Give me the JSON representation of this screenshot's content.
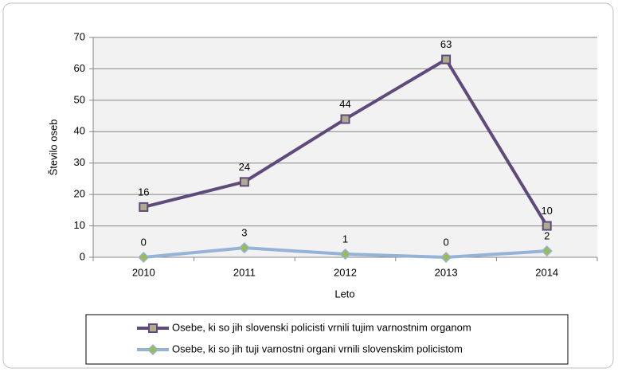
{
  "chart_data": {
    "type": "line",
    "x_label": "Leto",
    "y_label": "Število oseb",
    "categories": [
      "2010",
      "2011",
      "2012",
      "2013",
      "2014"
    ],
    "series": [
      {
        "name": "Osebe, ki so jih slovenski policisti vrnili tujim varnostnim organom",
        "color": "#604a7b",
        "marker_fill": "#b0ab90",
        "values": [
          16,
          24,
          44,
          63,
          10
        ]
      },
      {
        "name": "Osebe, ki so jih tuji varnostni organi vrnili slovenskim policistom",
        "color": "#95b3d7",
        "marker_fill": "#9bbb59",
        "values": [
          0,
          3,
          1,
          0,
          2
        ]
      }
    ],
    "ylim": [
      0,
      70
    ],
    "yticks": [
      0,
      10,
      20,
      30,
      40,
      50,
      60,
      70
    ],
    "grid": true
  }
}
